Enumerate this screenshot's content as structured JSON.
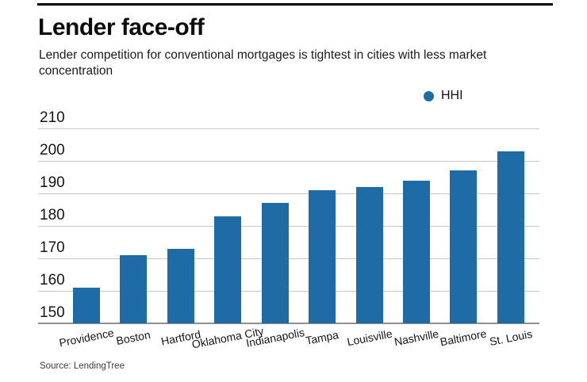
{
  "header": {
    "title": "Lender face-off",
    "subtitle": "Lender competition for conventional mortgages is tightest in cities with less market concentration"
  },
  "legend": {
    "label": "HHI",
    "marker_color": "#1f6ba6"
  },
  "chart_data": {
    "type": "bar",
    "title": "Lender face-off",
    "subtitle": "Lender competition for conventional mortgages is tightest in cities with less market concentration",
    "series_name": "HHI",
    "categories": [
      "Providence",
      "Boston",
      "Hartford",
      "Oklahoma City",
      "Indianapolis",
      "Tampa",
      "Louisville",
      "Nashville",
      "Baltimore",
      "St. Louis"
    ],
    "values": [
      161,
      171,
      173,
      183,
      187,
      191,
      192,
      194,
      197,
      203
    ],
    "xlabel": "",
    "ylabel": "",
    "ylim": [
      150,
      210
    ],
    "yticks": [
      150,
      160,
      170,
      180,
      190,
      200,
      210
    ],
    "bar_color": "#1f6ba6",
    "grid": true,
    "legend_position": "top-right"
  },
  "footer": {
    "source": "Source: LendingTree"
  }
}
